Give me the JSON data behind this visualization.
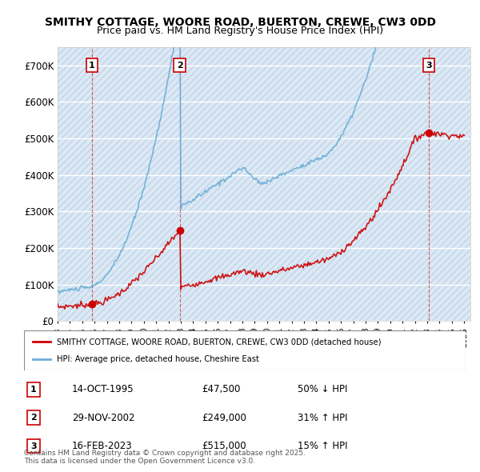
{
  "title_line1": "SMITHY COTTAGE, WOORE ROAD, BUERTON, CREWE, CW3 0DD",
  "title_line2": "Price paid vs. HM Land Registry's House Price Index (HPI)",
  "ylabel": "",
  "ylim": [
    0,
    750000
  ],
  "yticks": [
    0,
    100000,
    200000,
    300000,
    400000,
    500000,
    600000,
    700000
  ],
  "ytick_labels": [
    "£0",
    "£100K",
    "£200K",
    "£300K",
    "£400K",
    "£500K",
    "£600K",
    "£700K"
  ],
  "sale_dates_num": [
    1995.79,
    2002.91,
    2023.12
  ],
  "sale_prices": [
    47500,
    249000,
    515000
  ],
  "sale_labels": [
    "1",
    "2",
    "3"
  ],
  "hpi_color": "#6baed6",
  "price_color": "#cc0000",
  "background_color": "#ffffff",
  "plot_bg_color": "#dce9f5",
  "hatch_color": "#c0d4e8",
  "grid_color": "#ffffff",
  "legend_line1": "SMITHY COTTAGE, WOORE ROAD, BUERTON, CREWE, CW3 0DD (detached house)",
  "legend_line2": "HPI: Average price, detached house, Cheshire East",
  "transaction1": "14-OCT-1995",
  "transaction1_price": "£47,500",
  "transaction1_hpi": "50% ↓ HPI",
  "transaction2": "29-NOV-2002",
  "transaction2_price": "£249,000",
  "transaction2_hpi": "31% ↑ HPI",
  "transaction3": "16-FEB-2023",
  "transaction3_price": "£515,000",
  "transaction3_hpi": "15% ↑ HPI",
  "footer": "Contains HM Land Registry data © Crown copyright and database right 2025.\nThis data is licensed under the Open Government Licence v3.0."
}
